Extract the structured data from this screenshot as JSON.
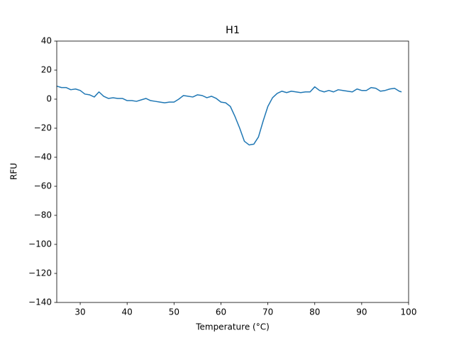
{
  "chart_data": {
    "type": "line",
    "title": "H1",
    "x_label": "Temperature (°C)",
    "y_label": "RFU",
    "xlim": [
      25,
      100
    ],
    "xticks": [
      30,
      40,
      50,
      60,
      70,
      80,
      90,
      100
    ],
    "ylim": [
      -140,
      40
    ],
    "yticks": [
      {
        "value": -140,
        "label": "−140"
      },
      {
        "value": -120,
        "label": "−120"
      },
      {
        "value": -100,
        "label": "−100"
      },
      {
        "value": -80,
        "label": "−80"
      },
      {
        "value": -60,
        "label": "−60"
      },
      {
        "value": -40,
        "label": "−40"
      },
      {
        "value": -20,
        "label": "−20"
      },
      0,
      20,
      40
    ],
    "grid": false,
    "series": [
      {
        "color": "#1f77b4",
        "x": [
          25,
          26,
          27,
          28,
          29,
          30,
          31,
          32,
          33,
          34,
          35,
          36,
          37,
          38,
          39,
          40,
          41,
          42,
          43,
          44,
          45,
          46,
          47,
          48,
          49,
          50,
          51,
          52,
          53,
          54,
          55,
          56,
          57,
          58,
          59,
          60,
          61,
          62,
          63,
          64,
          65,
          66,
          67,
          68,
          69,
          70,
          71,
          72,
          73,
          74,
          75,
          76,
          77,
          78,
          79,
          80,
          81,
          82,
          83,
          84,
          85,
          86,
          87,
          88,
          89,
          90,
          91,
          92,
          93,
          94,
          95,
          96,
          97,
          98,
          98.5
        ],
        "values": [
          9,
          8,
          8,
          6.5,
          7,
          6,
          3.5,
          3,
          1.5,
          5,
          2,
          0.5,
          1,
          0.5,
          0.5,
          -1,
          -1,
          -1.5,
          -0.5,
          0.5,
          -1,
          -1.5,
          -2,
          -2.5,
          -2,
          -2,
          0,
          2.5,
          2,
          1.5,
          3,
          2.5,
          1,
          2,
          0.5,
          -2,
          -2.5,
          -5,
          -12,
          -20,
          -29,
          -31.5,
          -31,
          -26,
          -15,
          -5,
          1,
          4,
          5.5,
          4.5,
          5.5,
          5,
          4.5,
          5,
          5,
          8.5,
          6,
          5,
          6,
          5,
          6.5,
          6,
          5.5,
          5,
          7,
          6,
          6,
          8,
          7.5,
          5.5,
          6,
          7,
          7.5,
          5.5,
          5
        ]
      }
    ]
  }
}
